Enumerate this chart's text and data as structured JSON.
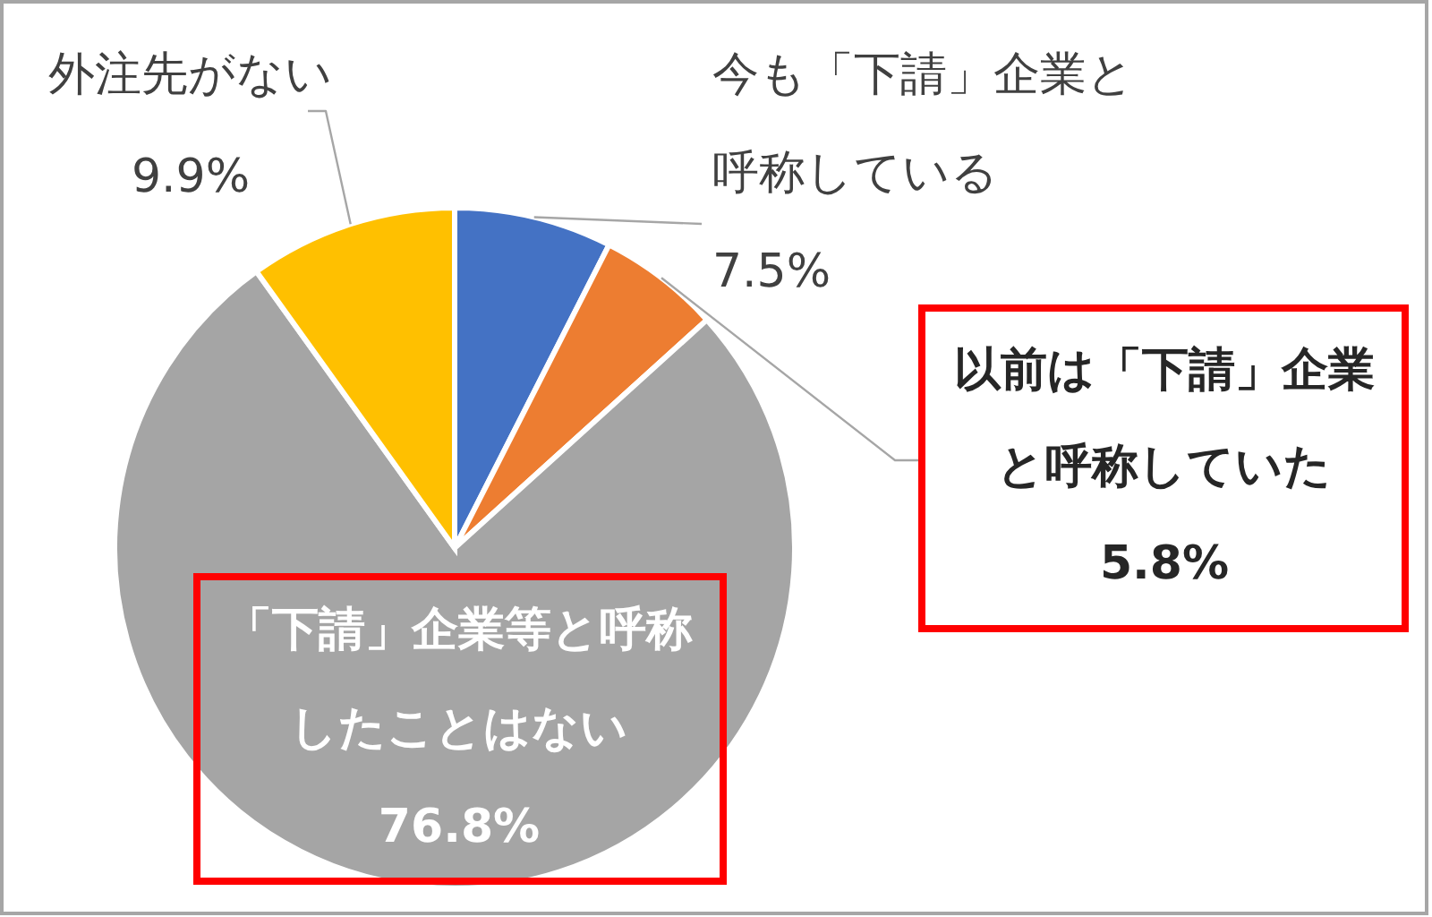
{
  "chart_data": {
    "type": "pie",
    "categories": [
      "今も「下請」企業と呼称している",
      "以前は「下請」企業と呼称していた",
      "「下請」企業等と呼称したことはない",
      "外注先がない"
    ],
    "values": [
      7.5,
      5.8,
      76.8,
      9.9
    ],
    "colors": [
      "#4472c4",
      "#ed7d31",
      "#a5a5a5",
      "#ffc000"
    ],
    "value_labels": [
      "7.5%",
      "5.8%",
      "76.8%",
      "9.9%"
    ]
  }
}
